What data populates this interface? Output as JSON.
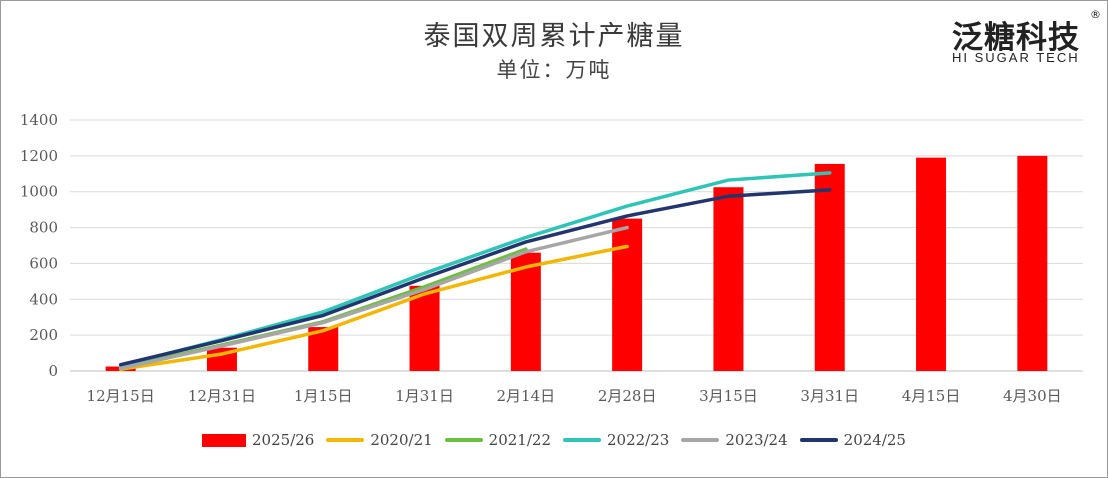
{
  "chart_data": {
    "type": "bar",
    "title": "泰国双周累计产糖量",
    "subtitle": "单位：万吨",
    "categories": [
      "12月15日",
      "12月31日",
      "1月15日",
      "1月31日",
      "2月14日",
      "2月28日",
      "3月15日",
      "3月31日",
      "4月15日",
      "4月30日"
    ],
    "ylim": [
      0,
      1400
    ],
    "yticks": [
      0,
      200,
      400,
      600,
      800,
      1000,
      1200,
      1400
    ],
    "grid": true,
    "legend_position": "bottom",
    "series": [
      {
        "name": "2025/26",
        "kind": "bar",
        "color": "#ff0000",
        "values": [
          25,
          130,
          245,
          475,
          660,
          850,
          1025,
          1155,
          1190,
          1200
        ]
      },
      {
        "name": "2020/21",
        "kind": "line",
        "color": "#f2b705",
        "values": [
          10,
          95,
          225,
          430,
          580,
          695,
          null,
          null,
          null,
          null
        ]
      },
      {
        "name": "2021/22",
        "kind": "line",
        "color": "#6cbf3f",
        "values": [
          20,
          145,
          275,
          470,
          680,
          null,
          null,
          null,
          null,
          null
        ]
      },
      {
        "name": "2022/23",
        "kind": "line",
        "color": "#2ec4b6",
        "values": [
          30,
          175,
          330,
          545,
          745,
          920,
          1065,
          1105,
          null,
          null
        ]
      },
      {
        "name": "2023/24",
        "kind": "line",
        "color": "#a6a6a6",
        "values": [
          15,
          140,
          270,
          455,
          665,
          800,
          null,
          null,
          null,
          null
        ]
      },
      {
        "name": "2024/25",
        "kind": "line",
        "color": "#22356e",
        "values": [
          35,
          170,
          310,
          520,
          720,
          865,
          975,
          1010,
          null,
          null
        ]
      }
    ]
  },
  "logo": {
    "cn": "泛糖科技",
    "en": "HI SUGAR TECH",
    "reg": "®"
  }
}
